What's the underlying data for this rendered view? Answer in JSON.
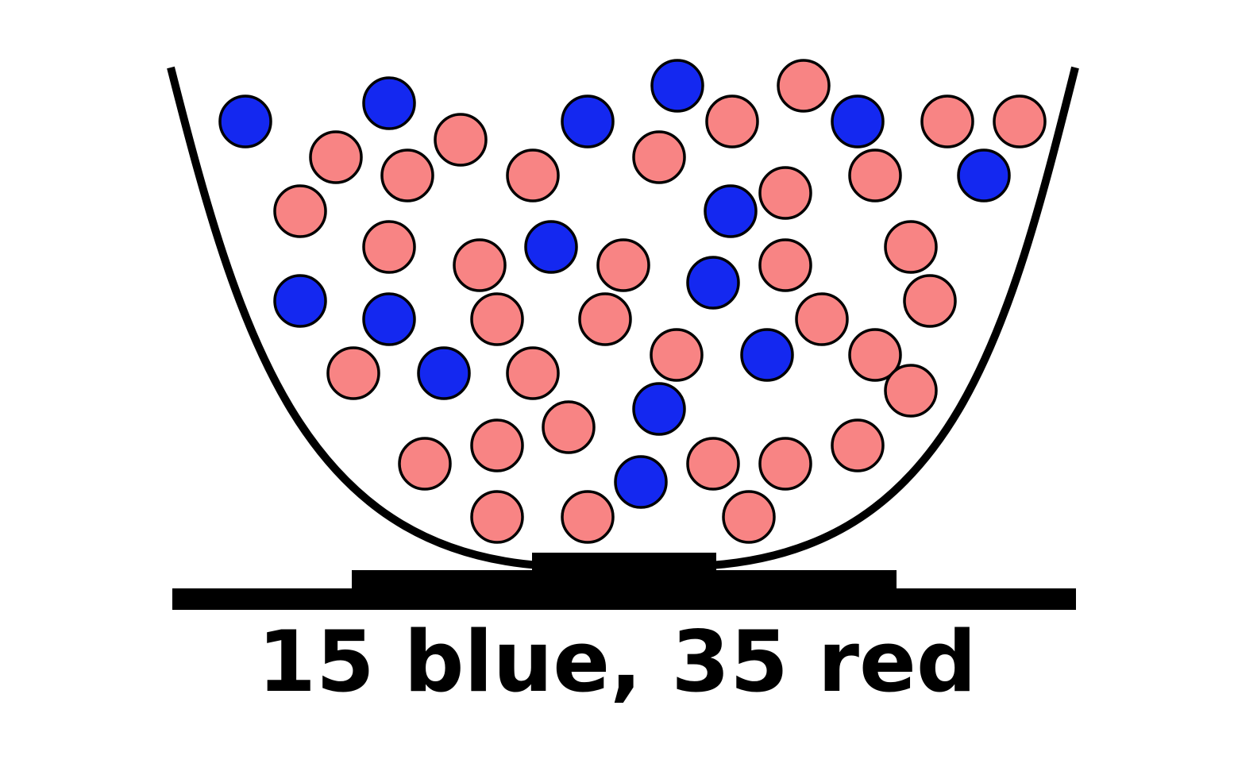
{
  "caption": "15 blue, 35 red",
  "colors": {
    "blue": "#1428f0",
    "red": "#f88484",
    "outline": "#000000"
  },
  "marbles": {
    "blue_count": 15,
    "red_count": 35
  }
}
